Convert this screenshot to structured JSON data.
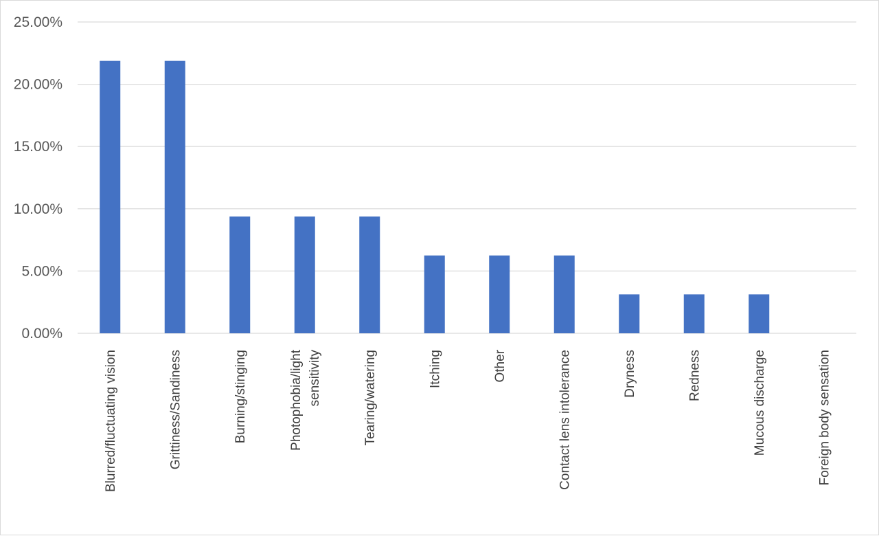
{
  "chart_data": {
    "type": "bar",
    "title": "",
    "xlabel": "",
    "ylabel": "",
    "ylim": [
      0,
      25
    ],
    "yticks": [
      "0.00%",
      "5.00%",
      "10.00%",
      "15.00%",
      "20.00%",
      "25.00%"
    ],
    "ytick_values": [
      0,
      5,
      10,
      15,
      20,
      25
    ],
    "grid": true,
    "legend": "none",
    "bar_color": "#4472C4",
    "categories": [
      [
        "Blurred/fluctuating vision"
      ],
      [
        "Grittiness/Sandiness"
      ],
      [
        "Burning/stinging"
      ],
      [
        "Photophobia/light",
        "sensitivity"
      ],
      [
        "Tearing/watering"
      ],
      [
        "Itching"
      ],
      [
        "Other"
      ],
      [
        "Contact lens intolerance"
      ],
      [
        "Dryness"
      ],
      [
        "Redness"
      ],
      [
        "Mucous discharge"
      ],
      [
        "Foreign body sensation"
      ]
    ],
    "values": [
      21.875,
      21.875,
      9.375,
      9.375,
      9.375,
      6.25,
      6.25,
      6.25,
      3.125,
      3.125,
      3.125,
      0
    ]
  }
}
